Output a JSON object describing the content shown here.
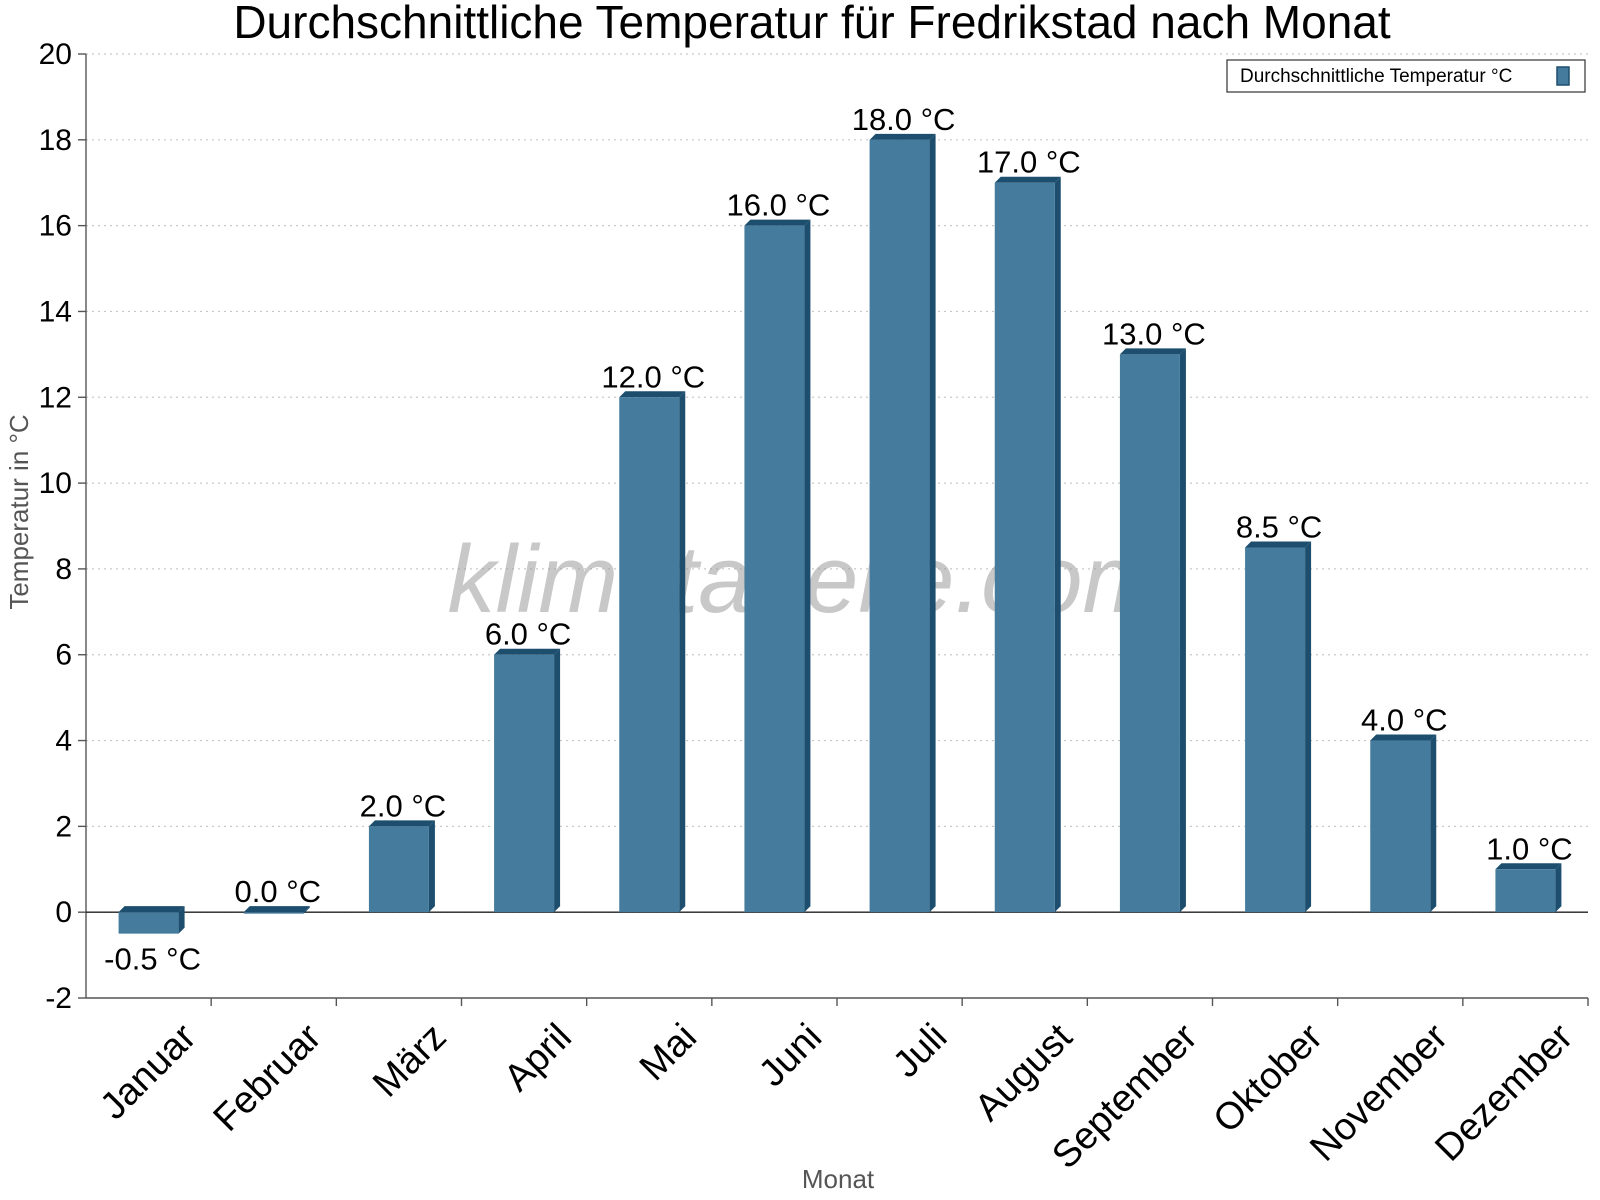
{
  "chart_data": {
    "type": "bar",
    "title": "Durchschnittliche Temperatur für Fredrikstad nach Monat",
    "xlabel": "Monat",
    "ylabel": "Temperatur in °C",
    "ylim": [
      -2,
      20
    ],
    "yticks": [
      -2,
      0,
      2,
      4,
      6,
      8,
      10,
      12,
      14,
      16,
      18,
      20
    ],
    "grid": true,
    "legend_position": "top-right",
    "categories": [
      "Januar",
      "Februar",
      "März",
      "April",
      "Mai",
      "Juni",
      "Juli",
      "August",
      "September",
      "Oktober",
      "November",
      "Dezember"
    ],
    "series": [
      {
        "name": "Durchschnittliche Temperatur °C",
        "values": [
          -0.5,
          0.0,
          2.0,
          6.0,
          12.0,
          16.0,
          18.0,
          17.0,
          13.0,
          8.5,
          4.0,
          1.0
        ],
        "data_labels": [
          "-0.5 °C",
          "0.0 °C",
          "2.0 °C",
          "6.0 °C",
          "12.0 °C",
          "16.0 °C",
          "18.0 °C",
          "17.0 °C",
          "13.0 °C",
          "8.5 °C",
          "4.0 °C",
          "1.0 °C"
        ],
        "color": "#457b9d",
        "shade_color": "#1d4e6e"
      }
    ],
    "watermark": "klimatabelle.com"
  }
}
